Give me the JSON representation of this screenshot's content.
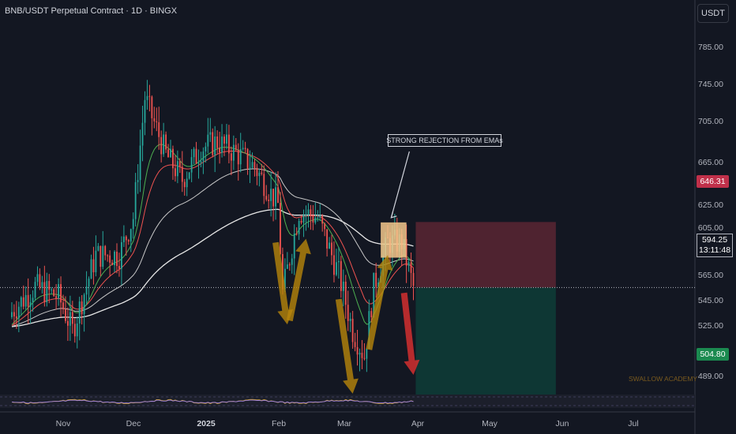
{
  "header": {
    "title": "BNB/USDT Perpetual Contract · 1D · BINGX"
  },
  "currency_label": "USDT",
  "annotation": {
    "label": "STRONG REJECTION FROM EMAs"
  },
  "price_axis": {
    "ticks": [
      "785.00",
      "745.00",
      "705.00",
      "665.00",
      "625.00",
      "605.00",
      "565.00",
      "545.00",
      "525.00",
      "489.00"
    ]
  },
  "time_axis": {
    "labels": [
      "Nov",
      "Dec",
      "2025",
      "Feb",
      "Mar",
      "Apr",
      "May",
      "Jun",
      "Jul"
    ]
  },
  "price_labels": {
    "stop": "646.31",
    "current": "594.25",
    "countdown": "13:11:48",
    "target": "504.80"
  },
  "watermark": "SWALLOW ACADEMY",
  "colors": {
    "background": "#131722",
    "up_candle": "#26a69a",
    "down_candle": "#ef5350",
    "stop_zone": "#5b2633",
    "target_zone": "#0e3b36",
    "arrow_orange": "#b8860b",
    "arrow_red": "#d32f2f",
    "ema_white": "#e8e8e8",
    "ema_green": "#4caf50",
    "ema_red": "#ef5350",
    "annotation_box": "#f5c88c"
  },
  "chart_data": {
    "type": "candlestick",
    "symbol": "BNB/USDT Perpetual Contract",
    "interval": "1D",
    "exchange": "BINGX",
    "ylim": [
      489,
      800
    ],
    "y_ticks": [
      785,
      745,
      705,
      665,
      625,
      605,
      565,
      545,
      525,
      489
    ],
    "x_labels": [
      "Nov",
      "Dec",
      "2025",
      "Feb",
      "Mar",
      "Apr",
      "May",
      "Jun",
      "Jul"
    ],
    "price_path": [
      {
        "date": "2024-10-10",
        "price": 575
      },
      {
        "date": "2024-10-20",
        "price": 595
      },
      {
        "date": "2024-10-30",
        "price": 587
      },
      {
        "date": "2024-11-05",
        "price": 560
      },
      {
        "date": "2024-11-15",
        "price": 620
      },
      {
        "date": "2024-11-25",
        "price": 620
      },
      {
        "date": "2024-12-01",
        "price": 650
      },
      {
        "date": "2024-12-06",
        "price": 745
      },
      {
        "date": "2024-12-15",
        "price": 700
      },
      {
        "date": "2024-12-22",
        "price": 680
      },
      {
        "date": "2024-12-30",
        "price": 705
      },
      {
        "date": "2025-01-06",
        "price": 710
      },
      {
        "date": "2025-01-15",
        "price": 700
      },
      {
        "date": "2025-01-22",
        "price": 690
      },
      {
        "date": "2025-02-01",
        "price": 660
      },
      {
        "date": "2025-02-03",
        "price": 590
      },
      {
        "date": "2025-02-10",
        "price": 655
      },
      {
        "date": "2025-02-18",
        "price": 650
      },
      {
        "date": "2025-02-27",
        "price": 605
      },
      {
        "date": "2025-03-05",
        "price": 560
      },
      {
        "date": "2025-03-10",
        "price": 540
      },
      {
        "date": "2025-03-14",
        "price": 595
      },
      {
        "date": "2025-03-20",
        "price": 630
      },
      {
        "date": "2025-03-26",
        "price": 630
      },
      {
        "date": "2025-03-31",
        "price": 594.25
      }
    ],
    "last_price": 594.25,
    "annotations": [
      {
        "type": "text",
        "text": "STRONG REJECTION FROM EMAs"
      },
      {
        "type": "rejection_box",
        "date_from": "2025-03-17",
        "date_to": "2025-03-28",
        "price_from": 618,
        "price_to": 646
      }
    ],
    "position": {
      "type": "short",
      "date_from": "2025-04-01",
      "date_to": "2025-05-31",
      "entry": 594.25,
      "stop": 646.31,
      "target": 504.8
    },
    "arrows": [
      {
        "color": "orange",
        "direction": "down",
        "from_date": "2025-01-31",
        "to_date": "2025-02-05",
        "from_price": 630,
        "to_price": 565
      },
      {
        "color": "orange",
        "direction": "up",
        "from_date": "2025-02-06",
        "to_date": "2025-02-13",
        "from_price": 568,
        "to_price": 633
      },
      {
        "color": "orange",
        "direction": "down",
        "from_date": "2025-02-27",
        "to_date": "2025-03-05",
        "from_price": 585,
        "to_price": 510
      },
      {
        "color": "orange",
        "direction": "up",
        "from_date": "2025-03-12",
        "to_date": "2025-03-20",
        "from_price": 545,
        "to_price": 620
      },
      {
        "color": "red",
        "direction": "down",
        "from_date": "2025-03-27",
        "to_date": "2025-03-31",
        "from_price": 590,
        "to_price": 525
      }
    ],
    "grid": false,
    "legend": "none"
  }
}
